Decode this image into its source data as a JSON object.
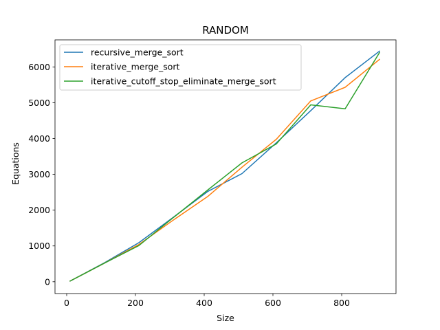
{
  "chart_data": {
    "type": "line",
    "title": "RANDOM",
    "xlabel": "Size",
    "ylabel": "Equations",
    "xlim": [
      -34,
      958
    ],
    "ylim": [
      -330,
      6755
    ],
    "xticks": [
      0,
      200,
      400,
      600,
      800
    ],
    "yticks": [
      0,
      1000,
      2000,
      3000,
      4000,
      5000,
      6000
    ],
    "xtick_labels": [
      "0",
      "200",
      "400",
      "600",
      "800"
    ],
    "ytick_labels": [
      "0",
      "1000",
      "2000",
      "3000",
      "4000",
      "5000",
      "6000"
    ],
    "grid": false,
    "legend_position": "upper-left",
    "x": [
      10,
      110,
      210,
      310,
      410,
      510,
      610,
      710,
      810,
      910
    ],
    "series": [
      {
        "name": "recursive_merge_sort",
        "color": "#1f77b4",
        "values": [
          20,
          530,
          1090,
          1800,
          2520,
          3020,
          3880,
          4780,
          5700,
          6440
        ]
      },
      {
        "name": "iterative_merge_sort",
        "color": "#ff7f0e",
        "values": [
          20,
          520,
          1040,
          1720,
          2380,
          3200,
          3980,
          5050,
          5430,
          6210
        ]
      },
      {
        "name": "iterative_cutoff_stop_eliminate_merge_sort",
        "color": "#2ca02c",
        "values": [
          20,
          520,
          1010,
          1790,
          2560,
          3320,
          3850,
          4940,
          4830,
          6400
        ]
      }
    ]
  }
}
